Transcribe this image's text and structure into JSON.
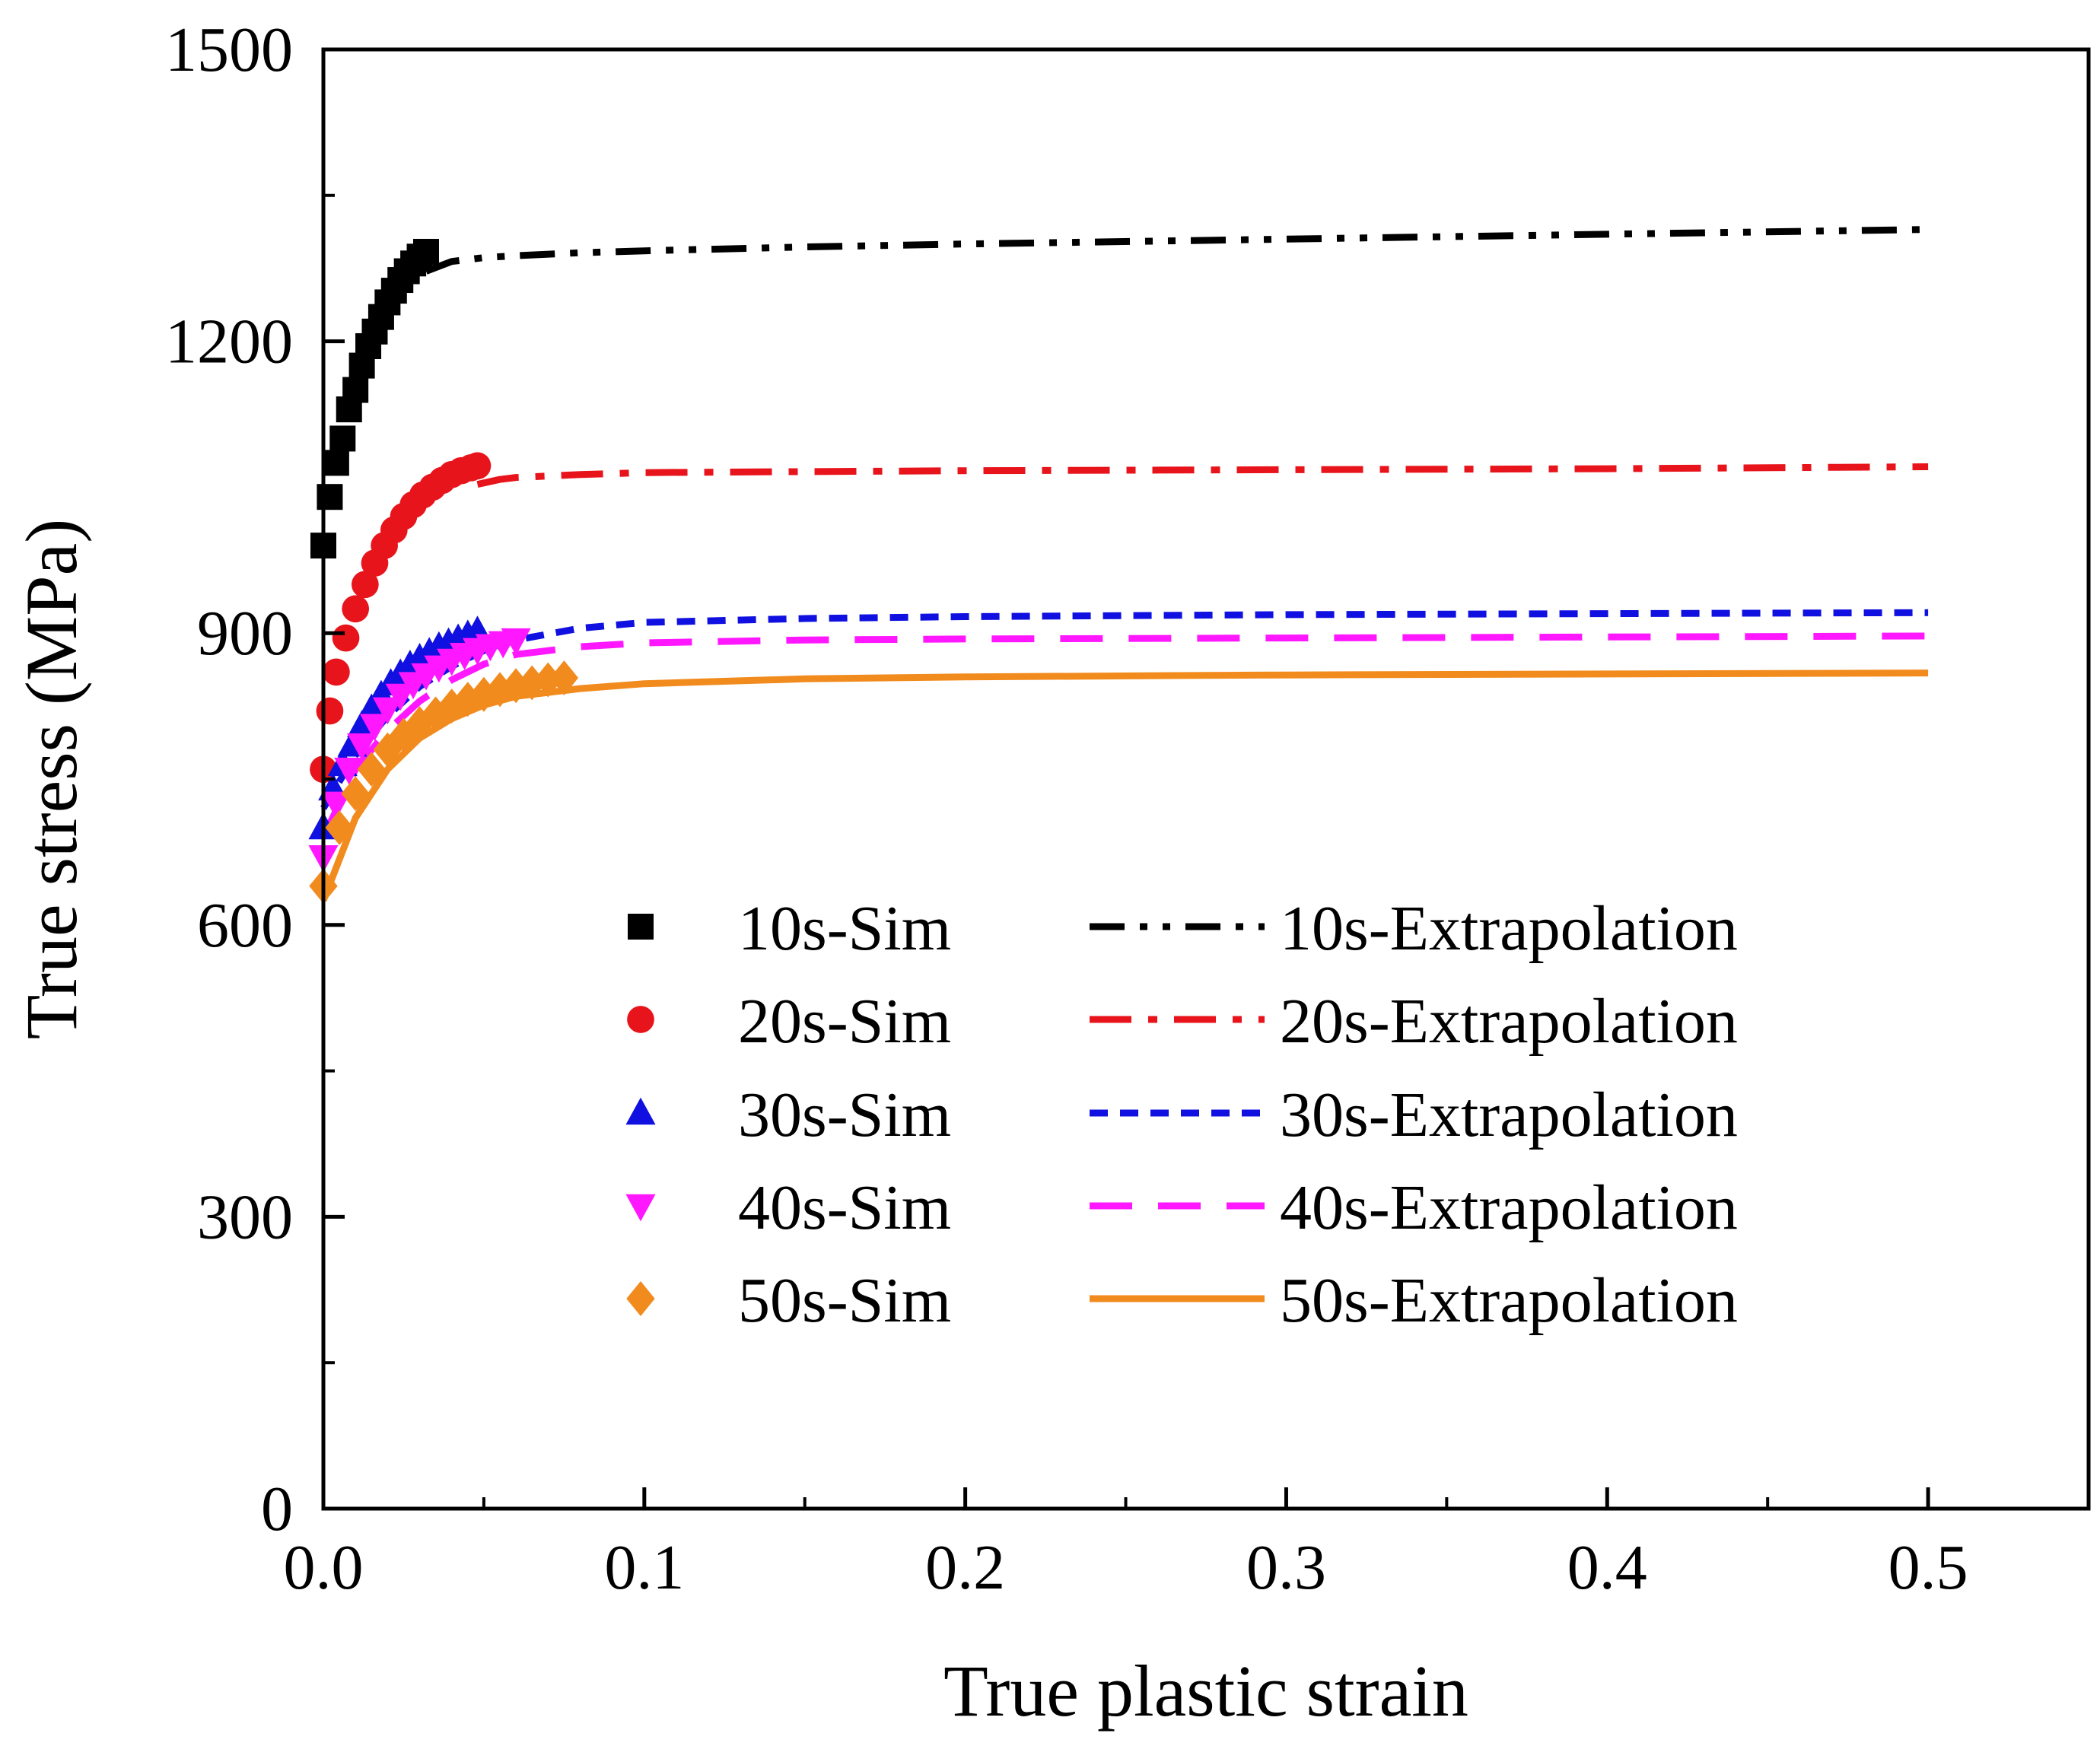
{
  "chart_data": {
    "type": "line",
    "title": "",
    "xlabel": "True plastic strain",
    "ylabel": "True stress (MPa)",
    "xlim": [
      0,
      0.55
    ],
    "ylim": [
      0,
      1500
    ],
    "xticks": [
      0.0,
      0.1,
      0.2,
      0.3,
      0.4,
      0.5
    ],
    "xtick_labels": [
      "0.0",
      "0.1",
      "0.2",
      "0.3",
      "0.4",
      "0.5"
    ],
    "yticks": [
      0,
      300,
      600,
      900,
      1200,
      1500
    ],
    "ytick_labels": [
      "0",
      "300",
      "600",
      "900",
      "1200",
      "1500"
    ],
    "grid": false,
    "legend_position": "center",
    "series": [
      {
        "name": "10s-Sim",
        "kind": "markers",
        "marker": "square",
        "color": "#000000",
        "x": [
          0.0,
          0.002,
          0.004,
          0.006,
          0.008,
          0.01,
          0.012,
          0.014,
          0.016,
          0.018,
          0.02,
          0.022,
          0.024,
          0.026,
          0.028,
          0.03,
          0.032
        ],
        "y": [
          990,
          1040,
          1075,
          1100,
          1130,
          1150,
          1175,
          1195,
          1210,
          1225,
          1240,
          1252,
          1263,
          1272,
          1280,
          1287,
          1292
        ]
      },
      {
        "name": "20s-Sim",
        "kind": "markers",
        "marker": "circle",
        "color": "#e8141c",
        "x": [
          0.0,
          0.002,
          0.004,
          0.007,
          0.01,
          0.013,
          0.016,
          0.019,
          0.022,
          0.025,
          0.028,
          0.031,
          0.034,
          0.037,
          0.04,
          0.043,
          0.046,
          0.048
        ],
        "y": [
          760,
          820,
          860,
          895,
          925,
          950,
          972,
          990,
          1006,
          1020,
          1032,
          1042,
          1050,
          1057,
          1063,
          1067,
          1070,
          1072
        ]
      },
      {
        "name": "30s-Sim",
        "kind": "markers",
        "marker": "triangle-up",
        "color": "#1010e0",
        "x": [
          0.0,
          0.003,
          0.006,
          0.009,
          0.012,
          0.015,
          0.018,
          0.021,
          0.024,
          0.027,
          0.03,
          0.033,
          0.036,
          0.039,
          0.042,
          0.045,
          0.048
        ],
        "y": [
          700,
          740,
          765,
          785,
          805,
          822,
          836,
          848,
          858,
          867,
          874,
          880,
          886,
          890,
          894,
          898,
          902
        ]
      },
      {
        "name": "40s-Sim",
        "kind": "markers",
        "marker": "triangle-down",
        "color": "#ff18ff",
        "x": [
          0.0,
          0.004,
          0.008,
          0.012,
          0.016,
          0.02,
          0.024,
          0.028,
          0.032,
          0.036,
          0.04,
          0.044,
          0.048,
          0.052,
          0.056,
          0.06
        ],
        "y": [
          670,
          725,
          760,
          785,
          805,
          822,
          836,
          848,
          857,
          865,
          872,
          878,
          883,
          887,
          890,
          893
        ]
      },
      {
        "name": "50s-Sim",
        "kind": "markers",
        "marker": "diamond",
        "color": "#f28b1e",
        "x": [
          0.0,
          0.005,
          0.01,
          0.015,
          0.02,
          0.025,
          0.03,
          0.035,
          0.04,
          0.045,
          0.05,
          0.055,
          0.06,
          0.065,
          0.07,
          0.075
        ],
        "y": [
          640,
          700,
          735,
          760,
          780,
          795,
          807,
          817,
          825,
          832,
          837,
          842,
          846,
          849,
          852,
          854
        ]
      },
      {
        "name": "10s-Extrapolation",
        "kind": "line",
        "dash": "dash-dot-dot",
        "color": "#000000",
        "x": [
          0.032,
          0.04,
          0.05,
          0.06,
          0.08,
          0.1,
          0.15,
          0.2,
          0.3,
          0.4,
          0.5
        ],
        "y": [
          1272,
          1282,
          1286,
          1288,
          1291,
          1293,
          1297,
          1300,
          1305,
          1310,
          1315
        ]
      },
      {
        "name": "20s-Extrapolation",
        "kind": "line",
        "dash": "dash-dot",
        "color": "#e8141c",
        "x": [
          0.048,
          0.055,
          0.06,
          0.08,
          0.1,
          0.15,
          0.2,
          0.3,
          0.4,
          0.5
        ],
        "y": [
          1053,
          1058,
          1060,
          1063,
          1065,
          1066,
          1067,
          1068,
          1069,
          1071
        ]
      },
      {
        "name": "30s-Extrapolation",
        "kind": "line",
        "dash": "short-dash",
        "color": "#1010e0",
        "x": [
          0.0,
          0.01,
          0.02,
          0.03,
          0.04,
          0.05,
          0.06,
          0.08,
          0.1,
          0.15,
          0.2,
          0.3,
          0.4,
          0.5
        ],
        "y": [
          720,
          775,
          815,
          845,
          866,
          882,
          893,
          905,
          911,
          915,
          917,
          919,
          920,
          921
        ]
      },
      {
        "name": "40s-Extrapolation",
        "kind": "line",
        "dash": "long-dash",
        "color": "#ff18ff",
        "x": [
          0.0,
          0.01,
          0.02,
          0.03,
          0.04,
          0.05,
          0.06,
          0.08,
          0.1,
          0.15,
          0.2,
          0.3,
          0.4,
          0.5
        ],
        "y": [
          690,
          760,
          800,
          830,
          852,
          868,
          878,
          886,
          890,
          893,
          894,
          895,
          896,
          897
        ]
      },
      {
        "name": "50s-Extrapolation",
        "kind": "line",
        "dash": "solid",
        "color": "#f28b1e",
        "x": [
          0.0,
          0.01,
          0.02,
          0.03,
          0.04,
          0.05,
          0.06,
          0.08,
          0.1,
          0.15,
          0.2,
          0.3,
          0.4,
          0.5
        ],
        "y": [
          625,
          710,
          760,
          792,
          812,
          826,
          835,
          843,
          848,
          853,
          855,
          857,
          858,
          859
        ]
      }
    ]
  }
}
